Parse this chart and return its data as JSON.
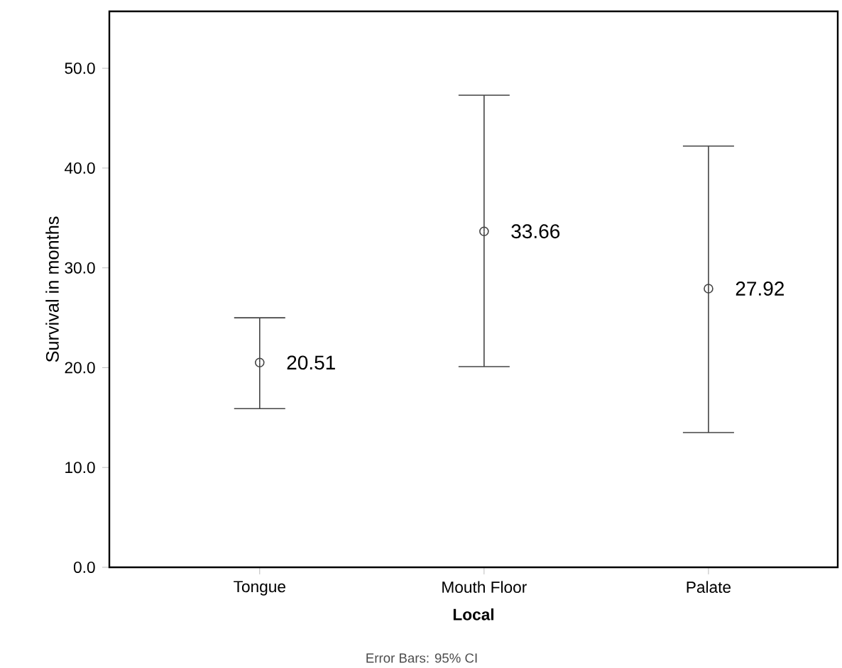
{
  "chart_data": {
    "type": "scatter",
    "xlabel": "Local",
    "ylabel": "Survival in months",
    "categories": [
      "Tongue",
      "Mouth Floor",
      "Palate"
    ],
    "values": [
      20.51,
      33.66,
      27.92
    ],
    "value_labels": [
      "20.51",
      "33.66",
      "27.92"
    ],
    "errors": [
      [
        15.9,
        25.0
      ],
      [
        20.1,
        47.3
      ],
      [
        13.5,
        42.2
      ]
    ],
    "color": "#444444",
    "marker": "circle",
    "ylim": [
      0,
      55.7
    ],
    "yticks": [
      {
        "value": 0,
        "label": "0.0"
      },
      {
        "value": 10,
        "label": "10.0"
      },
      {
        "value": 20,
        "label": "20.0"
      },
      {
        "value": 30,
        "label": "30.0"
      },
      {
        "value": 40,
        "label": "40.0"
      },
      {
        "value": 50,
        "label": "50.0"
      }
    ],
    "grid": false,
    "annotations": [
      "Error Bars: 95% CI"
    ]
  }
}
